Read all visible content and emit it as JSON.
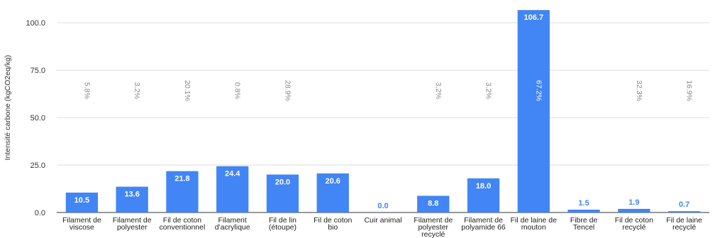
{
  "chart_data": {
    "type": "bar",
    "title": "",
    "xlabel": "",
    "ylabel": "Intensité carbone (kgCO2eq/kg)",
    "ylim": [
      0,
      112
    ],
    "yticks": [
      "0.0",
      "25.0",
      "50.0",
      "75.0",
      "100.0"
    ],
    "ytick_values": [
      0,
      25,
      50,
      75,
      100
    ],
    "grid": true,
    "bar_color": "#4285f4",
    "label_color_inside": "#ffffff",
    "label_color_outside": "#4285f4",
    "percent_label_color": "#8a8a8a",
    "categories": [
      [
        "Filament de",
        "viscose"
      ],
      [
        "Filament de",
        "polyester"
      ],
      [
        "Fil de coton",
        "conventionnel"
      ],
      [
        "Filament",
        "d'acrylique"
      ],
      [
        "Fil de lin",
        "(étoupe)"
      ],
      [
        "Fil de coton",
        "bio"
      ],
      [
        "Cuir animal"
      ],
      [
        "Filament de",
        "polyester",
        "recyclé"
      ],
      [
        "Filament de",
        "polyamide 66"
      ],
      [
        "Fil de laine de",
        "mouton"
      ],
      [
        "Fibre de",
        "Tencel"
      ],
      [
        "Fil de coton",
        "recyclé"
      ],
      [
        "Fil de laine",
        "recyclé"
      ]
    ],
    "values": [
      10.5,
      13.6,
      21.8,
      24.4,
      20.0,
      20.6,
      0.0,
      8.8,
      18.0,
      106.7,
      1.5,
      1.9,
      0.7
    ],
    "value_labels": [
      "10.5",
      "13.6",
      "21.8",
      "24.4",
      "20.0",
      "20.6",
      "0.0",
      "8.8",
      "18.0",
      "106.7",
      "1.5",
      "1.9",
      "0.7"
    ],
    "percent_labels": [
      "5.8%",
      "3.2%",
      "20.1%",
      "0.8%",
      "28.9%",
      "",
      "",
      "3.2%",
      "3.2%",
      "67.2%",
      "",
      "32.3%",
      "16.9%"
    ]
  }
}
